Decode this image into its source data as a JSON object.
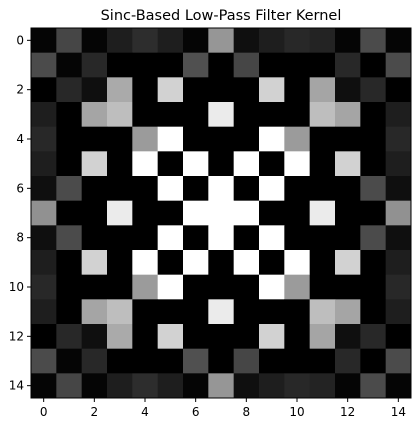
{
  "chart_data": {
    "type": "heatmap",
    "title": "Sinc-Based Low-Pass Filter Kernel",
    "colormap": "gray",
    "vmin": 0,
    "vmax": 255,
    "x_ticks": [
      0,
      2,
      4,
      6,
      8,
      10,
      12,
      14
    ],
    "y_ticks": [
      0,
      2,
      4,
      6,
      8,
      10,
      12,
      14
    ],
    "x_tick_labels": [
      "0",
      "2",
      "4",
      "6",
      "8",
      "10",
      "12",
      "14"
    ],
    "y_tick_labels": [
      "0",
      "2",
      "4",
      "6",
      "8",
      "10",
      "12",
      "14"
    ],
    "xlim": [
      -0.5,
      14.5
    ],
    "ylim": [
      14.5,
      -0.5
    ],
    "grid": false,
    "legend": "none",
    "matrix": [
      [
        5,
        70,
        5,
        30,
        45,
        30,
        5,
        150,
        15,
        30,
        40,
        35,
        5,
        75,
        5
      ],
      [
        75,
        5,
        40,
        0,
        0,
        0,
        80,
        0,
        70,
        0,
        0,
        0,
        40,
        0,
        75
      ],
      [
        0,
        40,
        15,
        170,
        0,
        210,
        0,
        0,
        0,
        210,
        0,
        165,
        15,
        40,
        0
      ],
      [
        30,
        0,
        165,
        190,
        0,
        0,
        0,
        235,
        0,
        0,
        0,
        190,
        165,
        0,
        30
      ],
      [
        40,
        0,
        0,
        0,
        155,
        255,
        0,
        0,
        0,
        255,
        155,
        0,
        0,
        0,
        40
      ],
      [
        30,
        0,
        210,
        0,
        255,
        0,
        255,
        0,
        255,
        0,
        255,
        0,
        210,
        0,
        30
      ],
      [
        15,
        75,
        0,
        0,
        0,
        255,
        0,
        255,
        0,
        255,
        0,
        0,
        0,
        75,
        15
      ],
      [
        145,
        0,
        0,
        235,
        0,
        0,
        255,
        255,
        255,
        0,
        0,
        235,
        0,
        0,
        145
      ],
      [
        15,
        75,
        0,
        0,
        0,
        255,
        0,
        255,
        0,
        255,
        0,
        0,
        0,
        75,
        15
      ],
      [
        30,
        0,
        210,
        0,
        255,
        0,
        255,
        0,
        255,
        0,
        255,
        0,
        210,
        0,
        30
      ],
      [
        40,
        0,
        0,
        0,
        155,
        255,
        0,
        0,
        0,
        255,
        155,
        0,
        0,
        0,
        40
      ],
      [
        30,
        0,
        165,
        190,
        0,
        0,
        0,
        235,
        0,
        0,
        0,
        190,
        165,
        0,
        30
      ],
      [
        0,
        40,
        15,
        170,
        0,
        210,
        0,
        0,
        0,
        210,
        0,
        165,
        15,
        40,
        0
      ],
      [
        75,
        5,
        40,
        0,
        0,
        0,
        80,
        0,
        70,
        0,
        0,
        0,
        40,
        0,
        75
      ],
      [
        5,
        70,
        5,
        30,
        45,
        30,
        5,
        150,
        15,
        30,
        40,
        35,
        5,
        75,
        5
      ]
    ]
  }
}
